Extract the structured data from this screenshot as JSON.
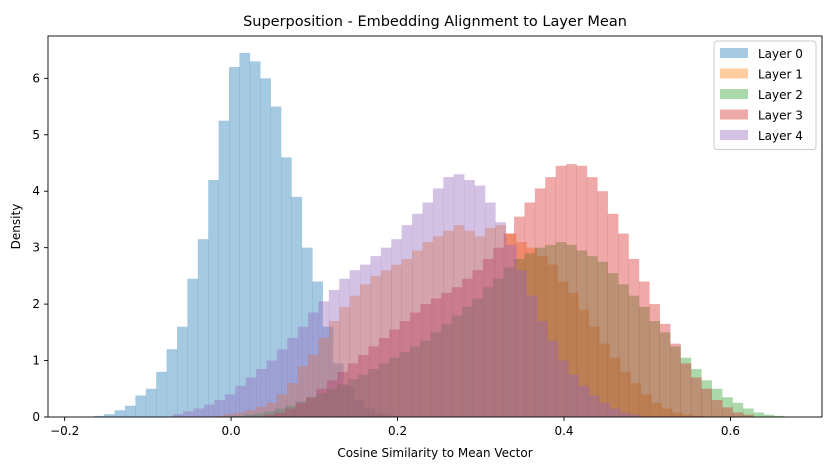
{
  "chart_data": {
    "type": "histogram",
    "title": "Superposition - Embedding Alignment to Layer Mean",
    "xlabel": "Cosine Similarity to Mean Vector",
    "ylabel": "Density",
    "xlim": [
      -0.22,
      0.71
    ],
    "ylim": [
      0,
      6.75
    ],
    "xticks": [
      -0.2,
      0.0,
      0.2,
      0.4,
      0.6
    ],
    "xtick_labels": [
      "−0.2",
      "0.0",
      "0.2",
      "0.4",
      "0.6"
    ],
    "yticks": [
      0,
      1,
      2,
      3,
      4,
      5,
      6
    ],
    "ytick_labels": [
      "0",
      "1",
      "2",
      "3",
      "4",
      "5",
      "6"
    ],
    "grid": false,
    "legend_position": "top-right",
    "alpha": 0.4,
    "series": [
      {
        "name": "Layer 0",
        "color": "#1f77b4",
        "bin_start": -0.165,
        "bin_width": 0.0125,
        "values": [
          0.02,
          0.05,
          0.12,
          0.2,
          0.38,
          0.5,
          0.8,
          1.2,
          1.6,
          2.45,
          3.15,
          4.2,
          5.25,
          6.2,
          6.45,
          6.3,
          6.0,
          5.5,
          4.6,
          3.9,
          3.0,
          2.4,
          1.6,
          0.95,
          0.55,
          0.3,
          0.15,
          0.06,
          0.03
        ]
      },
      {
        "name": "Layer 1",
        "color": "#ff7f0e",
        "bin_start": -0.02,
        "bin_width": 0.0125,
        "values": [
          0.02,
          0.05,
          0.08,
          0.12,
          0.18,
          0.25,
          0.4,
          0.6,
          0.9,
          1.1,
          1.4,
          1.7,
          1.95,
          2.15,
          2.35,
          2.5,
          2.6,
          2.7,
          2.8,
          2.95,
          3.1,
          3.2,
          3.3,
          3.4,
          3.3,
          3.2,
          3.35,
          3.4,
          3.25,
          3.1,
          3.0,
          2.85,
          2.7,
          2.4,
          2.2,
          1.9,
          1.6,
          1.3,
          1.05,
          0.8,
          0.6,
          0.4,
          0.25,
          0.15,
          0.08,
          0.04,
          0.02
        ]
      },
      {
        "name": "Layer 2",
        "color": "#2ca02c",
        "bin_start": -0.01,
        "bin_width": 0.0125,
        "values": [
          0.01,
          0.02,
          0.04,
          0.06,
          0.1,
          0.15,
          0.2,
          0.27,
          0.35,
          0.42,
          0.5,
          0.58,
          0.67,
          0.75,
          0.85,
          0.95,
          1.05,
          1.15,
          1.25,
          1.35,
          1.5,
          1.65,
          1.8,
          1.95,
          2.1,
          2.3,
          2.45,
          2.65,
          2.8,
          2.9,
          3.0,
          3.05,
          3.1,
          3.05,
          2.95,
          2.85,
          2.75,
          2.55,
          2.35,
          2.15,
          1.95,
          1.7,
          1.5,
          1.25,
          1.05,
          0.85,
          0.65,
          0.5,
          0.35,
          0.25,
          0.15,
          0.08,
          0.04,
          0.02
        ]
      },
      {
        "name": "Layer 3",
        "color": "#d62728",
        "bin_start": 0.04,
        "bin_width": 0.0125,
        "values": [
          0.04,
          0.08,
          0.15,
          0.25,
          0.35,
          0.5,
          0.65,
          0.8,
          0.95,
          1.1,
          1.25,
          1.4,
          1.55,
          1.7,
          1.85,
          2.0,
          2.1,
          2.2,
          2.3,
          2.45,
          2.6,
          2.8,
          3.0,
          3.25,
          3.55,
          3.8,
          4.05,
          4.25,
          4.45,
          4.48,
          4.45,
          4.25,
          4.0,
          3.6,
          3.25,
          2.8,
          2.4,
          2.0,
          1.65,
          1.3,
          0.95,
          0.7,
          0.5,
          0.3,
          0.17,
          0.08,
          0.04
        ]
      },
      {
        "name": "Layer 4",
        "color": "#9467bd",
        "bin_start": -0.07,
        "bin_width": 0.0125,
        "values": [
          0.05,
          0.1,
          0.15,
          0.22,
          0.3,
          0.4,
          0.55,
          0.7,
          0.85,
          1.0,
          1.2,
          1.4,
          1.6,
          1.85,
          2.05,
          2.25,
          2.45,
          2.6,
          2.7,
          2.85,
          3.0,
          3.15,
          3.4,
          3.6,
          3.8,
          4.05,
          4.25,
          4.3,
          4.2,
          4.1,
          3.8,
          3.45,
          3.05,
          2.6,
          2.15,
          1.7,
          1.35,
          1.0,
          0.75,
          0.55,
          0.38,
          0.25,
          0.15,
          0.08,
          0.04
        ]
      }
    ]
  }
}
